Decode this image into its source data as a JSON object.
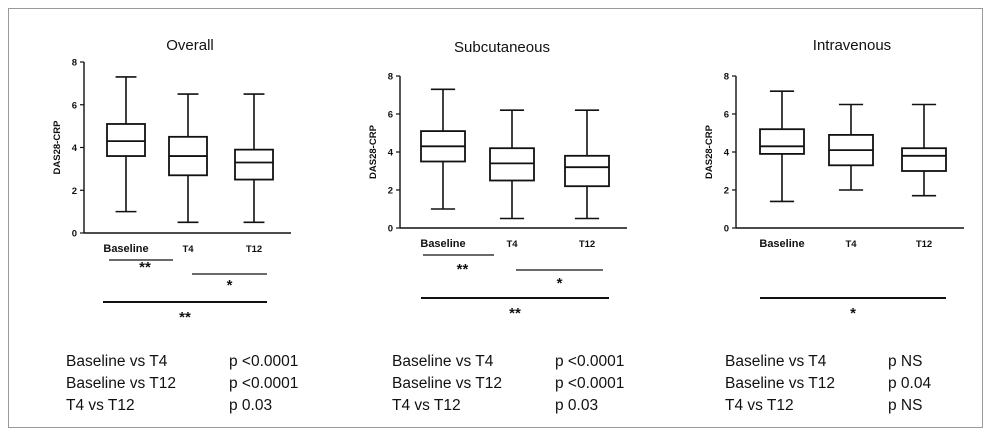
{
  "chart_data": [
    {
      "type": "box",
      "title": "Overall",
      "ylabel": "DAS28-CRP",
      "ylim": [
        0,
        8
      ],
      "yticks": [
        "0",
        "2",
        "4",
        "6",
        "8"
      ],
      "categories": [
        "Baseline",
        "T4",
        "T12"
      ],
      "boxes": [
        {
          "min": 1.0,
          "q1": 3.6,
          "median": 4.3,
          "q3": 5.1,
          "max": 7.3
        },
        {
          "min": 0.5,
          "q1": 2.7,
          "median": 3.6,
          "q3": 4.5,
          "max": 6.5
        },
        {
          "min": 0.5,
          "q1": 2.5,
          "median": 3.3,
          "q3": 3.9,
          "max": 6.5
        }
      ],
      "significance": [
        {
          "from": 0,
          "to": 1,
          "label": "**"
        },
        {
          "from": 1,
          "to": 2,
          "label": "*"
        },
        {
          "from": 0,
          "to": 2,
          "label": "**"
        }
      ],
      "stats": [
        {
          "comparison": "Baseline vs T4",
          "p": "p <0.0001"
        },
        {
          "comparison": "Baseline vs T12",
          "p": "p <0.0001"
        },
        {
          "comparison": "T4 vs T12",
          "p": "p 0.03"
        }
      ]
    },
    {
      "type": "box",
      "title": "Subcutaneous",
      "ylabel": "DAS28-CRP",
      "ylim": [
        0,
        8
      ],
      "yticks": [
        "0",
        "2",
        "4",
        "6",
        "8"
      ],
      "categories": [
        "Baseline",
        "T4",
        "T12"
      ],
      "boxes": [
        {
          "min": 1.0,
          "q1": 3.5,
          "median": 4.3,
          "q3": 5.1,
          "max": 7.3
        },
        {
          "min": 0.5,
          "q1": 2.5,
          "median": 3.4,
          "q3": 4.2,
          "max": 6.2
        },
        {
          "min": 0.5,
          "q1": 2.2,
          "median": 3.2,
          "q3": 3.8,
          "max": 6.2
        }
      ],
      "significance": [
        {
          "from": 0,
          "to": 1,
          "label": "**"
        },
        {
          "from": 1,
          "to": 2,
          "label": "*"
        },
        {
          "from": 0,
          "to": 2,
          "label": "**"
        }
      ],
      "stats": [
        {
          "comparison": "Baseline vs T4",
          "p": "p <0.0001"
        },
        {
          "comparison": "Baseline vs T12",
          "p": "p <0.0001"
        },
        {
          "comparison": "T4 vs T12",
          "p": "p 0.03"
        }
      ]
    },
    {
      "type": "box",
      "title": "Intravenous",
      "ylabel": "DAS28-CRP",
      "ylim": [
        0,
        8
      ],
      "yticks": [
        "0",
        "2",
        "4",
        "6",
        "8"
      ],
      "categories": [
        "Baseline",
        "T4",
        "T12"
      ],
      "boxes": [
        {
          "min": 1.4,
          "q1": 3.9,
          "median": 4.3,
          "q3": 5.2,
          "max": 7.2
        },
        {
          "min": 2.0,
          "q1": 3.3,
          "median": 4.1,
          "q3": 4.9,
          "max": 6.5
        },
        {
          "min": 1.7,
          "q1": 3.0,
          "median": 3.8,
          "q3": 4.2,
          "max": 6.5
        }
      ],
      "significance": [
        {
          "from": 0,
          "to": 2,
          "label": "*"
        }
      ],
      "stats": [
        {
          "comparison": "Baseline vs T4",
          "p": "p NS"
        },
        {
          "comparison": "Baseline vs T12",
          "p": "p 0.04"
        },
        {
          "comparison": "T4 vs T12",
          "p": "p NS"
        }
      ]
    }
  ]
}
